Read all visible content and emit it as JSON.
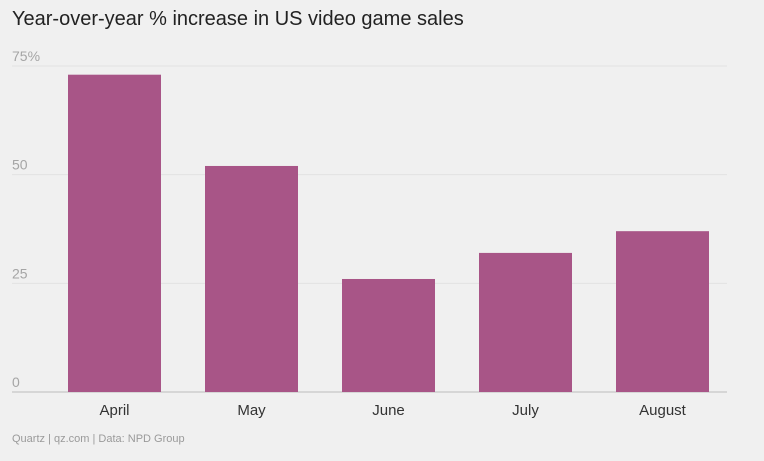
{
  "chart_data": {
    "type": "bar",
    "title": "Year-over-year % increase in US video game sales",
    "categories": [
      "April",
      "May",
      "June",
      "July",
      "August"
    ],
    "values": [
      73,
      52,
      26,
      32,
      37
    ],
    "ylim": [
      0,
      75
    ],
    "yticks": [
      {
        "value": 0,
        "label": "0"
      },
      {
        "value": 25,
        "label": "25"
      },
      {
        "value": 50,
        "label": "50"
      },
      {
        "value": 75,
        "label": "75%"
      }
    ],
    "xlabel": "",
    "ylabel": "",
    "grid": true,
    "colors": {
      "bar": "#a85587",
      "grid": "#e2e2e2",
      "axis": "#bdbdbd",
      "tick_text": "#a5a5a5",
      "category_text": "#333333"
    }
  },
  "source": "Quartz | qz.com | Data: NPD Group"
}
